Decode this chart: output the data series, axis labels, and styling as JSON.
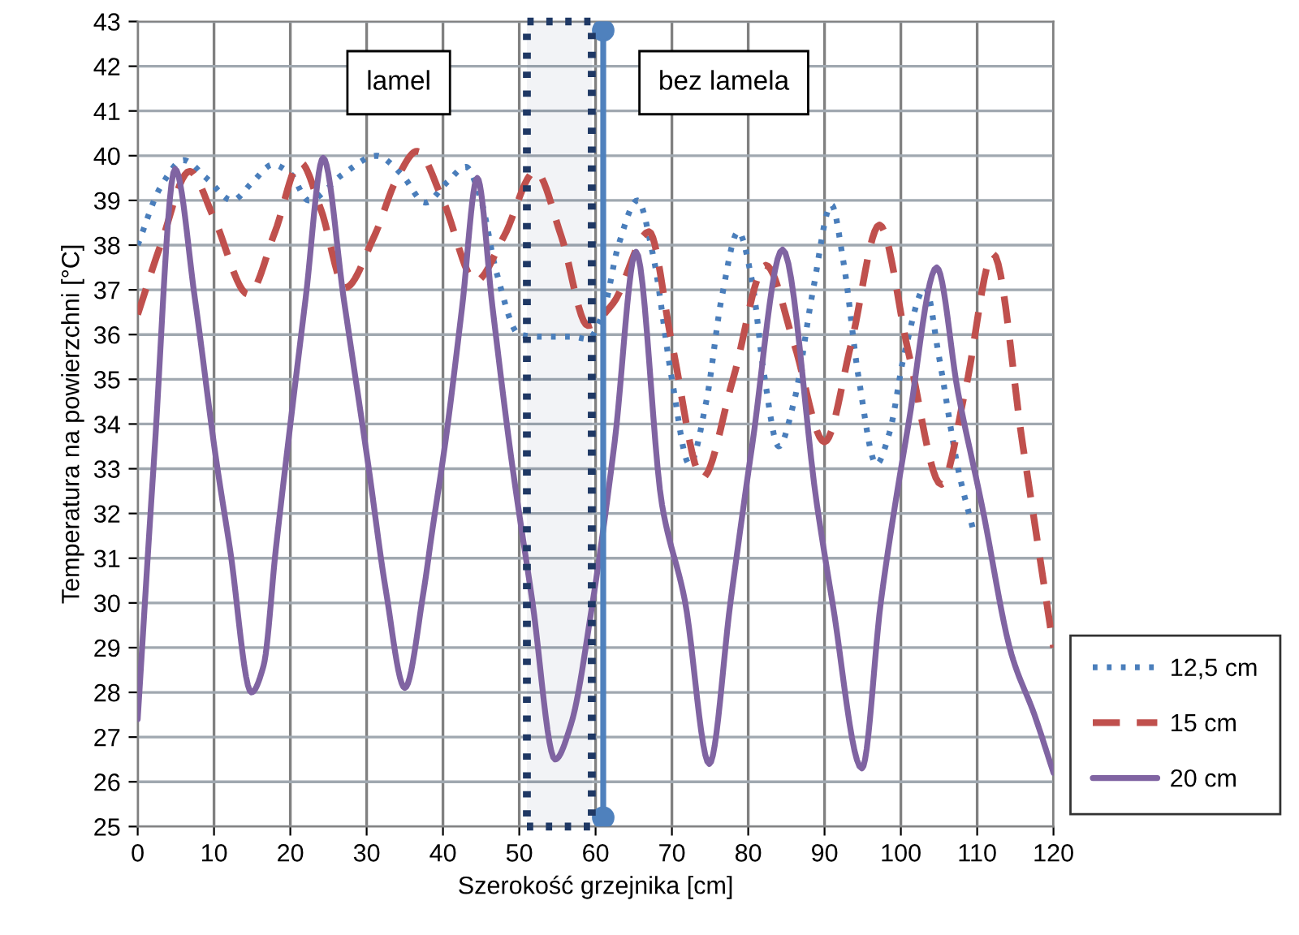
{
  "chart_data": {
    "type": "line",
    "xlabel": "Szerokość grzejnika [cm]",
    "ylabel": "Temperatura na powierzchni [°C]",
    "xlim": [
      0,
      120
    ],
    "xticks": [
      0,
      10,
      20,
      30,
      40,
      50,
      60,
      70,
      80,
      90,
      100,
      110,
      120
    ],
    "ylim": [
      25,
      43
    ],
    "yticks": [
      25,
      26,
      27,
      28,
      29,
      30,
      31,
      32,
      33,
      34,
      35,
      36,
      37,
      38,
      39,
      40,
      41,
      42,
      43
    ],
    "grid": true,
    "legend": "bottom right",
    "marker": "none",
    "annotations": [
      "lamel",
      "bez lamela"
    ],
    "bands": [
      {
        "axis": "x",
        "from": 51,
        "to": 59.5,
        "color": "#1f3864"
      }
    ],
    "series": [
      {
        "name": "12,5 cm",
        "color": "#4a7ebb",
        "line_style": "dotted",
        "x": [
          0,
          3,
          6,
          9,
          12.4,
          15,
          17.7,
          20,
          22.4,
          27,
          31.3,
          34.5,
          37.7,
          40.5,
          43,
          45,
          47,
          50,
          53,
          57,
          59,
          61,
          63,
          65.5,
          67.5,
          70,
          72.3,
          74.5,
          76.5,
          78.7,
          80.5,
          82,
          84,
          86,
          88.5,
          90.9,
          92.5,
          94.5,
          96.8,
          98.5,
          100.5,
          103.2,
          105,
          107.5,
          109.6
        ],
        "values": [
          38.0,
          39.3,
          39.9,
          39.5,
          39.0,
          39.4,
          39.8,
          39.6,
          39.0,
          39.6,
          40.0,
          39.6,
          38.95,
          39.4,
          39.75,
          39.0,
          37.4,
          36.0,
          35.95,
          35.95,
          35.9,
          36.5,
          38.0,
          39.0,
          37.8,
          35.0,
          33.1,
          34.5,
          36.8,
          38.3,
          37.2,
          35.2,
          33.5,
          34.5,
          37.0,
          38.9,
          37.6,
          35.0,
          33.1,
          33.8,
          35.6,
          37.05,
          35.5,
          33.0,
          31.55
        ]
      },
      {
        "name": "15 cm",
        "color": "#c0504d",
        "line_style": "dashed",
        "x": [
          0,
          3,
          6.8,
          10,
          14.5,
          18,
          21.3,
          24,
          27.2,
          31,
          34,
          36.6,
          40,
          44.3,
          48,
          52.1,
          55.5,
          59,
          62.3,
          67,
          70,
          74,
          78,
          82.3,
          86,
          90,
          93.5,
          97.2,
          101,
          105.3,
          108.5,
          112.1,
          116,
          120
        ],
        "values": [
          36.45,
          38.0,
          39.65,
          38.6,
          36.9,
          38.3,
          39.85,
          38.8,
          37.05,
          38.2,
          39.5,
          40.1,
          39.0,
          37.2,
          38.2,
          39.65,
          38.2,
          36.2,
          36.7,
          38.3,
          35.8,
          32.8,
          35.0,
          37.55,
          35.8,
          33.6,
          35.8,
          38.45,
          35.6,
          32.65,
          34.8,
          37.8,
          33.5,
          29.0
        ]
      },
      {
        "name": "20 cm",
        "color": "#8064a2",
        "line_style": "solid",
        "x": [
          0,
          2.1,
          4.9,
          7.5,
          10.2,
          12.1,
          14.9,
          16.5,
          18.1,
          19.8,
          22,
          24.3,
          27,
          30.2,
          32.5,
          35,
          37.5,
          38.5,
          40.4,
          42.5,
          44.5,
          46.5,
          48.9,
          51.7,
          54.7,
          56.8,
          59.6,
          62.5,
          65.3,
          68.7,
          71.7,
          74.9,
          77.7,
          80.5,
          84.5,
          89,
          91,
          94.9,
          97.4,
          101,
          104.7,
          107.5,
          110.6,
          114.5,
          117.5,
          120
        ],
        "values": [
          27.4,
          33.1,
          39.7,
          36.8,
          33.3,
          31.2,
          28.0,
          28.6,
          31.2,
          33.7,
          36.8,
          39.95,
          36.8,
          33.1,
          30.3,
          28.1,
          30.3,
          31.5,
          33.7,
          36.6,
          39.5,
          36.6,
          33.3,
          30.05,
          26.5,
          27.3,
          30.0,
          33.6,
          37.85,
          32.2,
          30.05,
          26.4,
          30.05,
          33.5,
          37.9,
          32.2,
          30.05,
          26.3,
          30.05,
          34.0,
          37.5,
          34.7,
          32.2,
          28.85,
          27.5,
          26.2
        ]
      },
      {
        "color": "#4f81bd",
        "line_style": "solid",
        "marker": "circle",
        "x": [
          61,
          61
        ],
        "values": [
          25.2,
          42.8
        ]
      }
    ]
  }
}
